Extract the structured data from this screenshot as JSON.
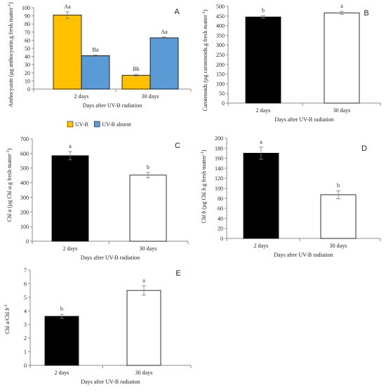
{
  "chart_data": [
    {
      "panel": "A",
      "type": "bar",
      "categories": [
        "2 days",
        "30 days"
      ],
      "series": [
        {
          "name": "UV-B",
          "color": "#FFC000",
          "values": [
            91,
            17
          ],
          "errors": [
            4,
            1
          ],
          "labels": [
            "Aa",
            "Bb"
          ]
        },
        {
          "name": "UV-B absent",
          "color": "#5B9BD5",
          "values": [
            41,
            63
          ],
          "errors": [
            1,
            1
          ],
          "labels": [
            "Ba",
            "Aa"
          ]
        }
      ],
      "ylabel": "Anthocyanin (µg anthocyanin.g fresh matter-1)",
      "xlabel": "Days after UV-B radiation",
      "ylim": [
        0,
        100
      ],
      "yticks": [
        0,
        10,
        20,
        30,
        40,
        50,
        60,
        70,
        80,
        90,
        100
      ]
    },
    {
      "panel": "B",
      "type": "bar",
      "categories": [
        "2 days",
        "30 days"
      ],
      "values": [
        445,
        466
      ],
      "errors": [
        6,
        8
      ],
      "labels": [
        "b",
        "a"
      ],
      "colors": [
        "#000000",
        "#ffffff"
      ],
      "ylabel": "Carotenoids (µg carotenoids.g fresh matter-1)",
      "xlabel": "Days after UV-B radiation",
      "ylim": [
        0,
        500
      ],
      "yticks": [
        0,
        50,
        100,
        150,
        200,
        250,
        300,
        350,
        400,
        450,
        500
      ]
    },
    {
      "panel": "C",
      "type": "bar",
      "categories": [
        "2 days",
        "30 days"
      ],
      "values": [
        585,
        452
      ],
      "errors": [
        28,
        18
      ],
      "labels": [
        "a",
        "b"
      ],
      "colors": [
        "#000000",
        "#ffffff"
      ],
      "ylabel": "Chl a (µg Chl a.g fresh matter-1)",
      "xlabel": "Days after UV-B radiation",
      "ylim": [
        0,
        700
      ],
      "yticks": [
        0,
        100,
        200,
        300,
        400,
        500,
        600,
        700
      ]
    },
    {
      "panel": "D",
      "type": "bar",
      "categories": [
        "2 days",
        "30 days"
      ],
      "values": [
        170,
        87
      ],
      "errors": [
        12,
        8
      ],
      "labels": [
        "a",
        "b"
      ],
      "colors": [
        "#000000",
        "#ffffff"
      ],
      "ylabel": "Chl b (µg Chl b.g fresh matter-1)",
      "xlabel": "Days after UV-B radiation",
      "ylim": [
        0,
        200
      ],
      "yticks": [
        0,
        20,
        40,
        60,
        80,
        100,
        120,
        140,
        160,
        180,
        200
      ]
    },
    {
      "panel": "E",
      "type": "bar",
      "categories": [
        "2 days",
        "30 days"
      ],
      "values": [
        3.6,
        5.5
      ],
      "errors": [
        0.15,
        0.35
      ],
      "labels": [
        "b",
        "a"
      ],
      "colors": [
        "#000000",
        "#ffffff"
      ],
      "ylabel": "Chl a/Chl b-1",
      "xlabel": "Days after UV-B radiation",
      "ylim": [
        0,
        7
      ],
      "yticks": [
        0,
        1,
        2,
        3,
        4,
        5,
        6,
        7
      ]
    }
  ]
}
